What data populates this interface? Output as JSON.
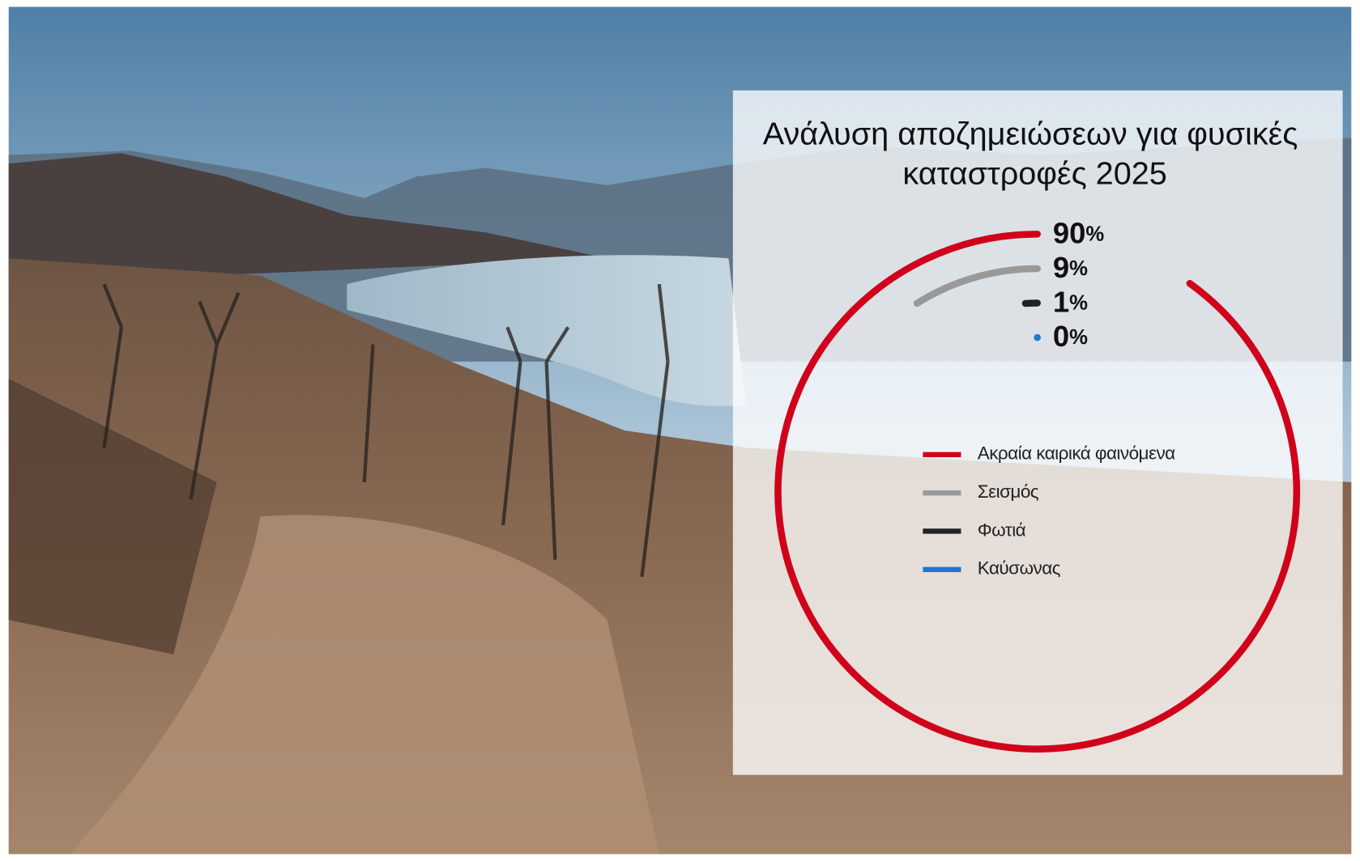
{
  "chart_data": {
    "type": "radial_bar",
    "title": "Ανάλυση αποζημειώσεων για φυσικές καταστροφές 2025",
    "max": 100,
    "series": [
      {
        "name": "Ακραία καιρικά φαινόμενα",
        "color": "#d0021b",
        "values": [
          90
        ],
        "value_labels": [
          "90%"
        ]
      },
      {
        "name": "Σεισμός",
        "color": "#999999",
        "values": [
          9
        ],
        "value_labels": [
          "9%"
        ]
      },
      {
        "name": "Φωτιά",
        "color": "#222222",
        "values": [
          1
        ],
        "value_labels": [
          "1%"
        ]
      },
      {
        "name": "Καύσωνας",
        "color": "#1f77d0",
        "values": [
          0
        ],
        "value_labels": [
          "0%"
        ]
      }
    ]
  }
}
